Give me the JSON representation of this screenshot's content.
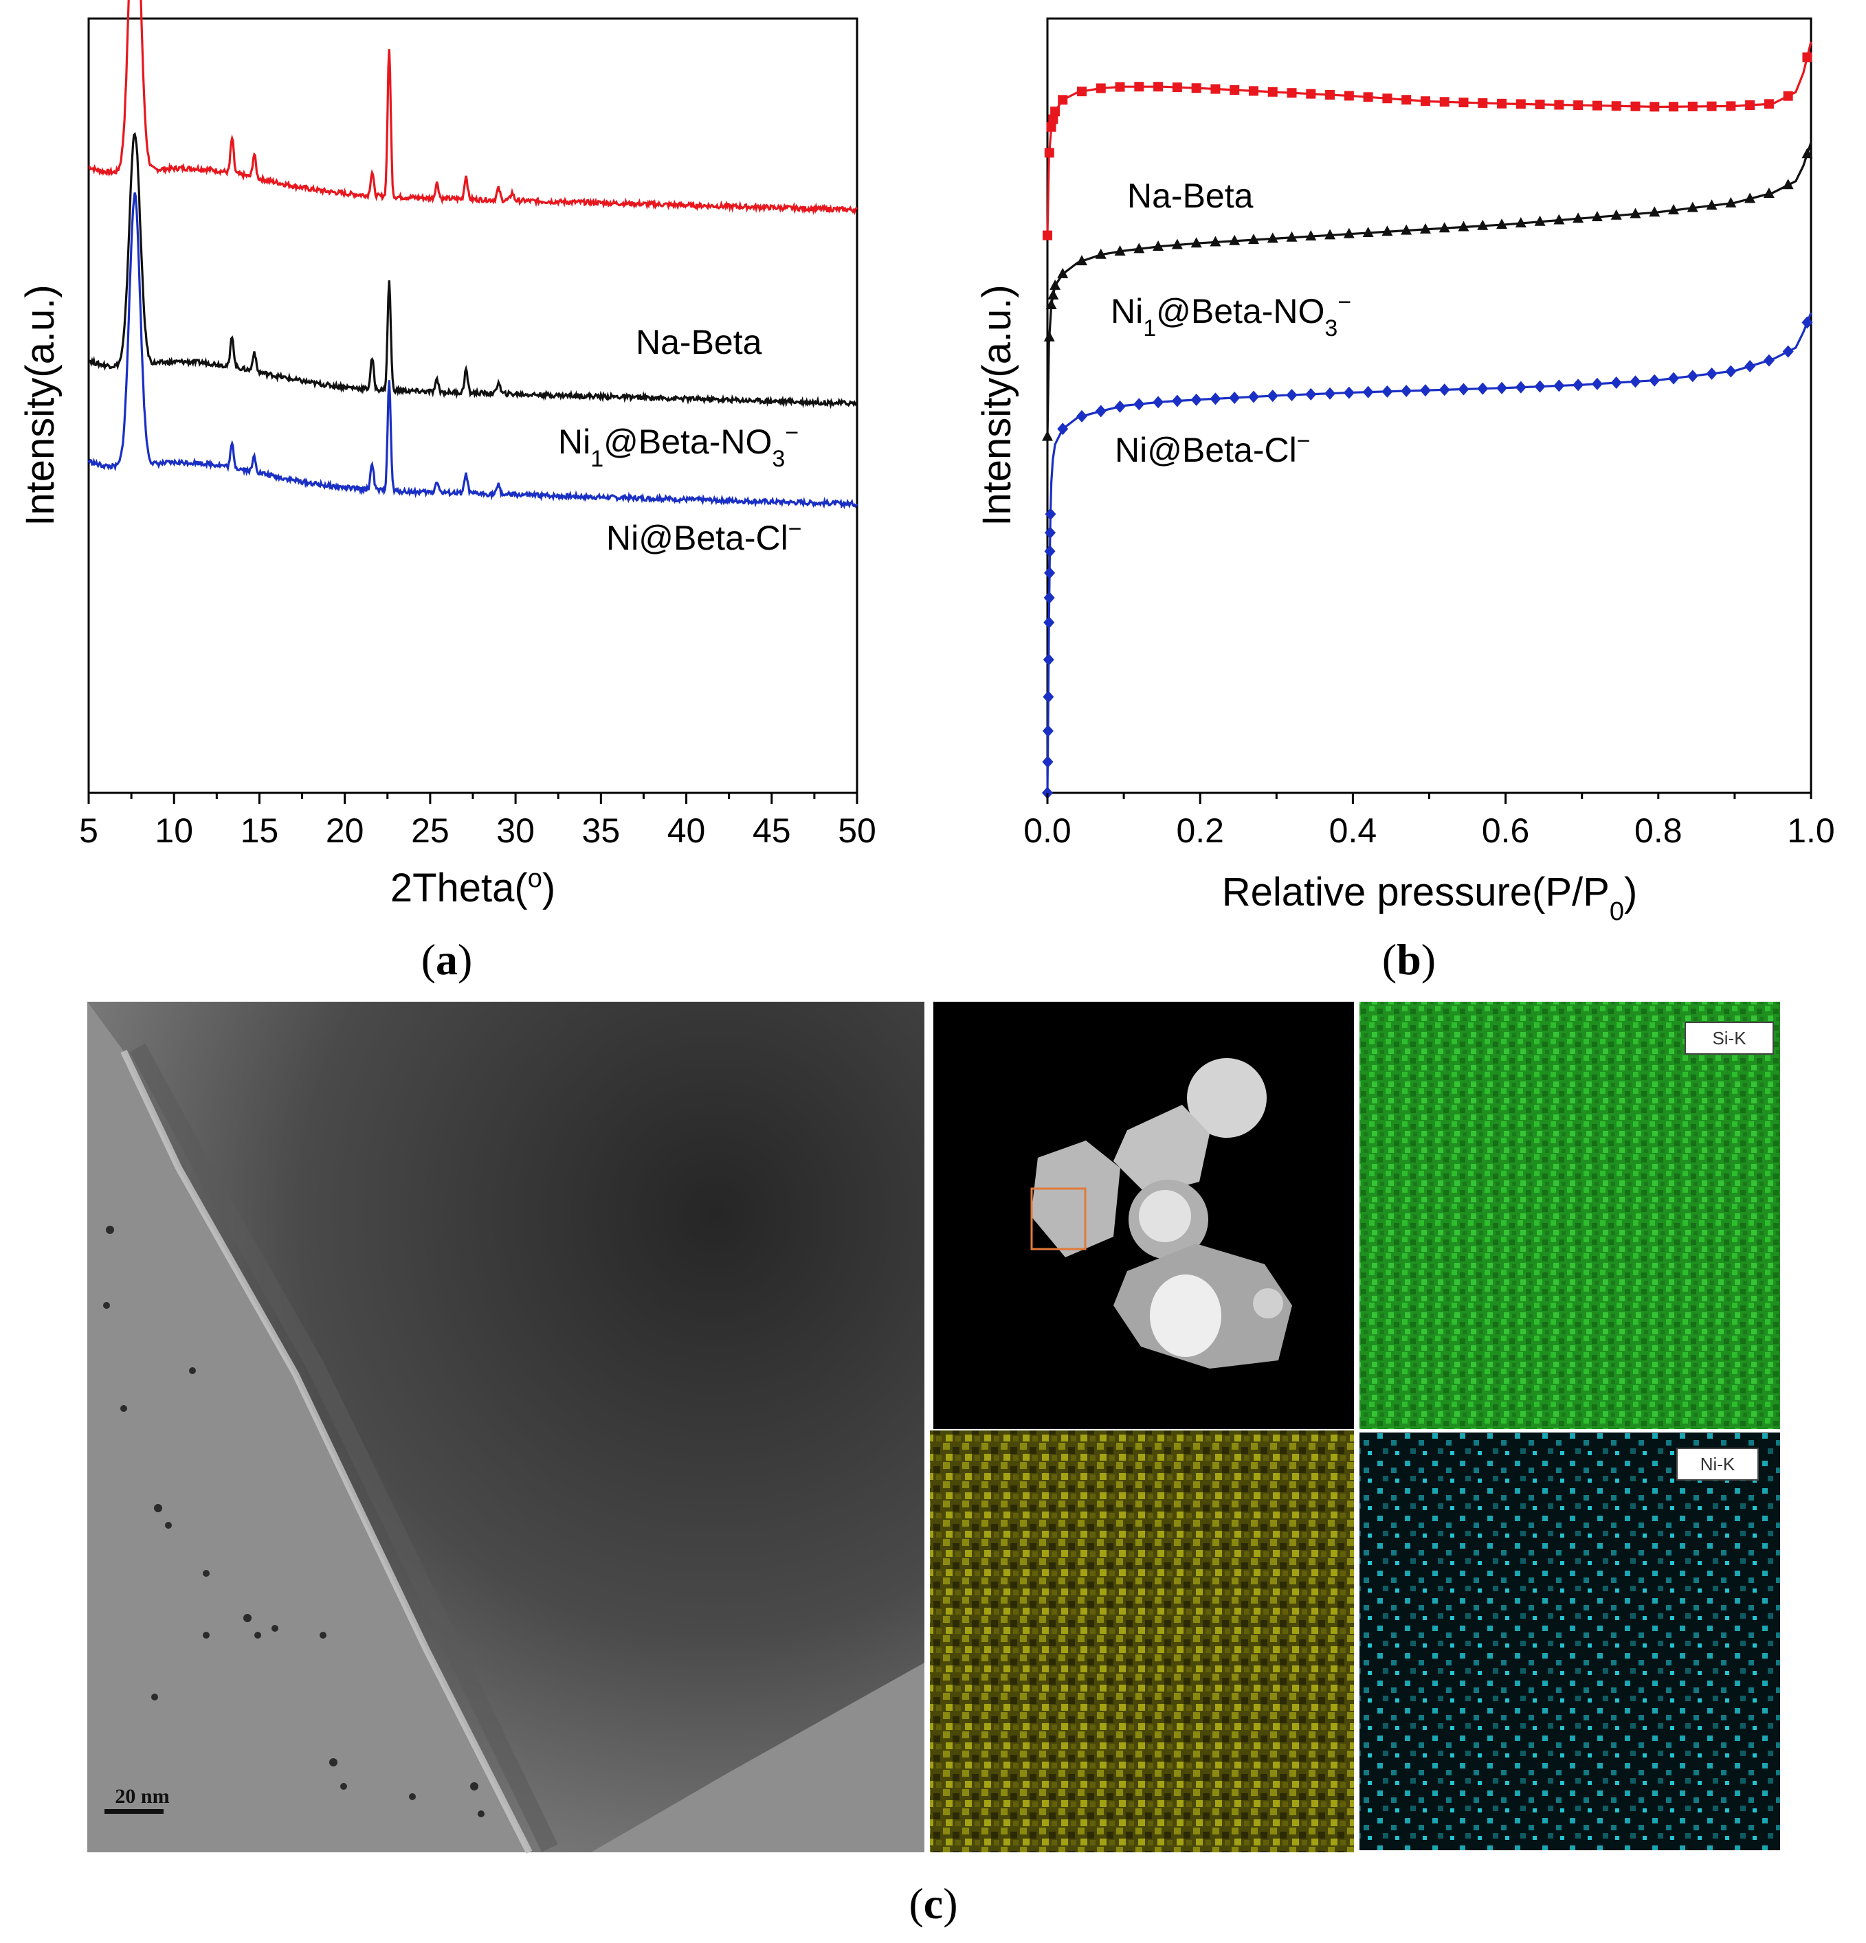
{
  "panel_labels": {
    "a": "a",
    "b": "b",
    "c": "c"
  },
  "eds_labels": {
    "si": "Si-K",
    "ni": "Ni-K"
  },
  "tem_scale_bar": "20 nm",
  "chart_data": [
    {
      "type": "line",
      "panel": "a",
      "xlabel": "2Theta(",
      "xlabel_sup": "o",
      "xlabel_tail": ")",
      "ylabel": "Intensity(a.u.)",
      "xlim": [
        5,
        50
      ],
      "xticks": [
        "5",
        "10",
        "15",
        "20",
        "25",
        "30",
        "35",
        "40",
        "45",
        "50"
      ],
      "y_ticks_shown": false,
      "legend": "inline labels next to each curve",
      "series": [
        {
          "name": "Na-Beta",
          "label_main": "Na-Beta",
          "label_sub": "",
          "label_tail": "",
          "label_sup": "",
          "color": "#e8171e",
          "offset": 0.78,
          "peaks": [
            [
              7.7,
              0.42
            ],
            [
              13.4,
              0.045
            ],
            [
              14.7,
              0.03
            ],
            [
              21.6,
              0.03
            ],
            [
              22.6,
              0.19
            ],
            [
              25.4,
              0.02
            ],
            [
              27.1,
              0.03
            ],
            [
              29.0,
              0.015
            ],
            [
              29.8,
              0.01
            ]
          ]
        },
        {
          "name": "Ni1@Beta-NO3−",
          "label_main": "Ni",
          "label_sub": "1",
          "label_tail": "@Beta-NO",
          "label_tail_sub": "3",
          "label_sup": "−",
          "color": "#111111",
          "offset": 0.53,
          "peaks": [
            [
              7.7,
              0.3
            ],
            [
              13.4,
              0.04
            ],
            [
              14.7,
              0.025
            ],
            [
              21.6,
              0.04
            ],
            [
              22.6,
              0.14
            ],
            [
              25.4,
              0.015
            ],
            [
              27.1,
              0.03
            ],
            [
              29.0,
              0.015
            ]
          ]
        },
        {
          "name": "Ni@Beta-Cl−",
          "label_main": "Ni@Beta-Cl",
          "label_sub": "",
          "label_tail": "",
          "label_sup": "−",
          "color": "#1a2fc4",
          "offset": 0.4,
          "peaks": [
            [
              7.7,
              0.35
            ],
            [
              13.4,
              0.03
            ],
            [
              14.7,
              0.02
            ],
            [
              21.6,
              0.035
            ],
            [
              22.6,
              0.14
            ],
            [
              25.4,
              0.015
            ],
            [
              27.1,
              0.025
            ],
            [
              29.0,
              0.012
            ]
          ]
        }
      ]
    },
    {
      "type": "line",
      "panel": "b",
      "xlabel": "Relative pressure(P/P",
      "xlabel_sub": "0",
      "xlabel_tail": ")",
      "ylabel": "Intensity(a.u.)",
      "xlim": [
        0.0,
        1.0
      ],
      "xticks": [
        "0.0",
        "0.2",
        "0.4",
        "0.6",
        "0.8",
        "1.0"
      ],
      "y_ticks_shown": false,
      "legend": "inline labels above each curve",
      "series": [
        {
          "name": "Na-Beta",
          "label_main": "Na-Beta",
          "label_sub": "",
          "label_tail": "",
          "label_sup": "",
          "color": "#e8171e",
          "marker": "square",
          "x": [
            0.0,
            0.002,
            0.005,
            0.01,
            0.02,
            0.04,
            0.07,
            0.1,
            0.15,
            0.2,
            0.3,
            0.4,
            0.5,
            0.6,
            0.7,
            0.8,
            0.9,
            0.95,
            0.98,
            0.99,
            1.0
          ],
          "y": [
            0.72,
            0.82,
            0.86,
            0.88,
            0.895,
            0.905,
            0.91,
            0.912,
            0.912,
            0.91,
            0.905,
            0.9,
            0.893,
            0.89,
            0.888,
            0.886,
            0.887,
            0.89,
            0.905,
            0.93,
            0.97
          ]
        },
        {
          "name": "Ni1@Beta-NO3−",
          "label_main": "Ni",
          "label_sub": "1",
          "label_tail": "@Beta-NO",
          "label_tail_sub": "3",
          "label_sup": "−",
          "color": "#111111",
          "marker": "triangle",
          "x": [
            0.0,
            0.002,
            0.005,
            0.01,
            0.02,
            0.04,
            0.07,
            0.1,
            0.15,
            0.2,
            0.3,
            0.4,
            0.5,
            0.6,
            0.7,
            0.8,
            0.9,
            0.95,
            0.98,
            0.99,
            1.0
          ],
          "y": [
            0.46,
            0.58,
            0.63,
            0.655,
            0.67,
            0.685,
            0.695,
            0.7,
            0.706,
            0.71,
            0.716,
            0.722,
            0.728,
            0.734,
            0.742,
            0.75,
            0.762,
            0.775,
            0.79,
            0.81,
            0.84
          ]
        },
        {
          "name": "Ni@Beta-Cl−",
          "label_main": "Ni@Beta-Cl",
          "label_sub": "",
          "label_tail": "",
          "label_sup": "−",
          "color": "#1a2fc4",
          "marker": "diamond",
          "x": [
            0.0,
            0.001,
            0.002,
            0.003,
            0.004,
            0.005,
            0.007,
            0.01,
            0.02,
            0.04,
            0.07,
            0.1,
            0.15,
            0.2,
            0.3,
            0.4,
            0.5,
            0.6,
            0.7,
            0.8,
            0.9,
            0.95,
            0.98,
            0.99,
            1.0
          ],
          "y": [
            0.0,
            0.1,
            0.22,
            0.3,
            0.36,
            0.4,
            0.43,
            0.45,
            0.47,
            0.485,
            0.493,
            0.5,
            0.505,
            0.508,
            0.513,
            0.517,
            0.52,
            0.523,
            0.527,
            0.533,
            0.545,
            0.56,
            0.575,
            0.595,
            0.62
          ]
        }
      ]
    }
  ]
}
